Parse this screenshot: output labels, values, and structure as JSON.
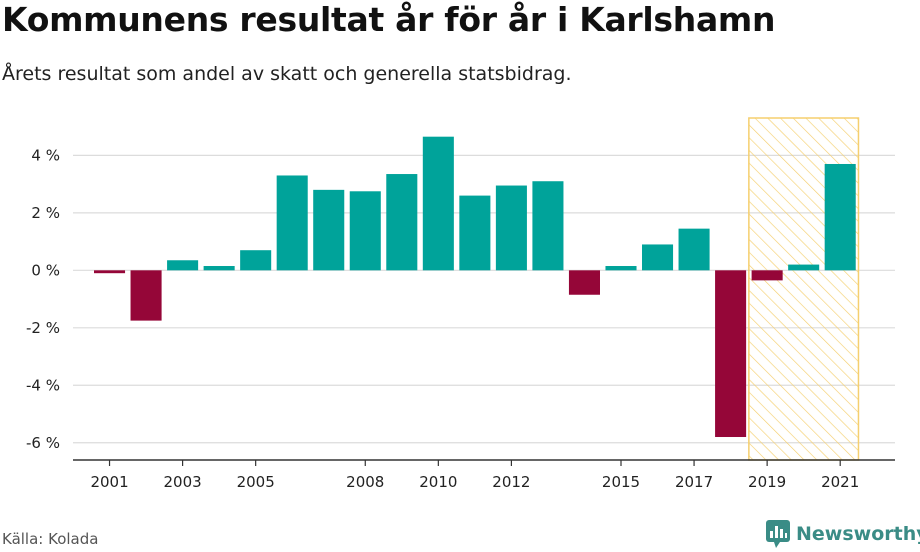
{
  "header": {
    "title": "Kommunens resultat år för år i Karlshamn",
    "subtitle": "Årets resultat som andel av skatt och generella statsbidrag."
  },
  "footer": {
    "source": "Källa: Kolada",
    "brand": "Newsworthy",
    "brand_icon": "newsworthy-logo-icon"
  },
  "colors": {
    "positive": "#00a39a",
    "negative": "#950638",
    "highlight_stroke": "#f5cf6e",
    "grid": "#dcdcdc",
    "axis": "#333333"
  },
  "chart_data": {
    "type": "bar",
    "title": "Kommunens resultat år för år i Karlshamn",
    "subtitle": "Årets resultat som andel av skatt och generella statsbidrag.",
    "xlabel": "",
    "ylabel": "",
    "categories": [
      2001,
      2002,
      2003,
      2004,
      2005,
      2006,
      2007,
      2008,
      2009,
      2010,
      2011,
      2012,
      2013,
      2014,
      2015,
      2016,
      2017,
      2018,
      2019,
      2020,
      2021
    ],
    "values": [
      -0.1,
      -1.75,
      0.35,
      0.15,
      0.7,
      3.3,
      2.8,
      2.75,
      3.35,
      4.65,
      2.6,
      2.95,
      3.1,
      -0.85,
      0.15,
      0.9,
      1.45,
      -5.8,
      -0.35,
      0.2,
      3.7
    ],
    "x_tick_labels": [
      "2001",
      "2003",
      "2005",
      "2008",
      "2010",
      "2012",
      "2015",
      "2017",
      "2019",
      "2021"
    ],
    "y_ticks": [
      -6,
      -4,
      -2,
      0,
      2,
      4
    ],
    "y_tick_labels": [
      "-6 %",
      "-4 %",
      "-2 %",
      "0 %",
      "2 %",
      "4 %"
    ],
    "ylim": [
      -6.6,
      5.3
    ],
    "xlim": [
      2000,
      2022.5
    ],
    "grid": true,
    "highlight_range": [
      2018.5,
      2021.5
    ]
  }
}
